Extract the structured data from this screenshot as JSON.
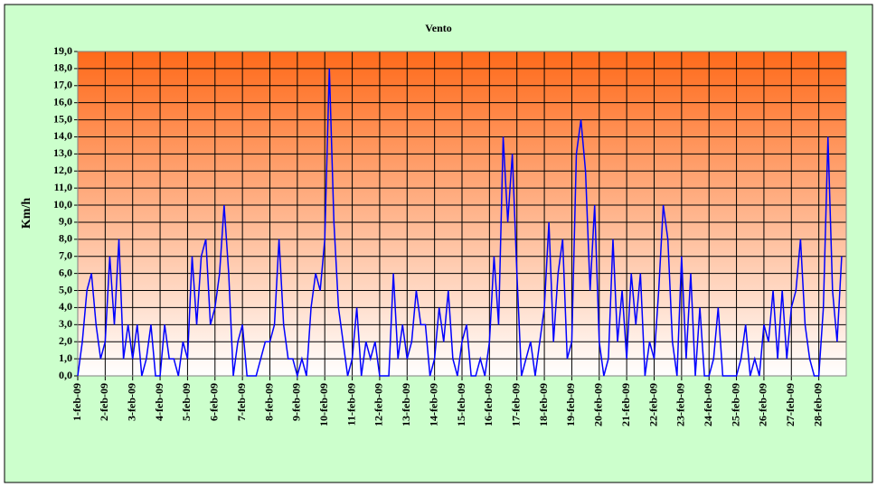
{
  "chart_data": {
    "type": "line",
    "title": "Vento",
    "y_label": "Km/h",
    "categories": [
      "1-feb-09",
      null,
      null,
      null,
      null,
      null,
      "2-feb-09",
      null,
      null,
      null,
      null,
      null,
      "3-feb-09",
      null,
      null,
      null,
      null,
      null,
      "4-feb-09",
      null,
      null,
      null,
      null,
      null,
      "5-feb-09",
      null,
      null,
      null,
      null,
      null,
      "6-feb-09",
      null,
      null,
      null,
      null,
      null,
      "7-feb-09",
      null,
      null,
      null,
      null,
      null,
      "8-feb-09",
      null,
      null,
      null,
      null,
      null,
      "9-feb-09",
      null,
      null,
      null,
      null,
      null,
      "10-feb-09",
      null,
      null,
      null,
      null,
      null,
      "11-feb-09",
      null,
      null,
      null,
      null,
      null,
      "12-feb-09",
      null,
      null,
      null,
      null,
      null,
      "13-feb-09",
      null,
      null,
      null,
      null,
      null,
      "14-feb-09",
      null,
      null,
      null,
      null,
      null,
      "15-feb-09",
      null,
      null,
      null,
      null,
      null,
      "16-feb-09",
      null,
      null,
      null,
      null,
      null,
      "17-feb-09",
      null,
      null,
      null,
      null,
      null,
      "18-feb-09",
      null,
      null,
      null,
      null,
      null,
      "19-feb-09",
      null,
      null,
      null,
      null,
      null,
      "20-feb-09",
      null,
      null,
      null,
      null,
      null,
      "21-feb-09",
      null,
      null,
      null,
      null,
      null,
      "22-feb-09",
      null,
      null,
      null,
      null,
      null,
      "23-feb-09",
      null,
      null,
      null,
      null,
      null,
      "24-feb-09",
      null,
      null,
      null,
      null,
      null,
      "25-feb-09",
      null,
      null,
      null,
      null,
      null,
      "26-feb-09",
      null,
      null,
      null,
      null,
      null,
      "27-feb-09",
      null,
      null,
      null,
      null,
      null,
      "28-feb-09",
      null,
      null,
      null,
      null,
      null
    ],
    "series": [
      {
        "name": "Vento",
        "color": "#0000ff",
        "values": [
          0,
          2,
          5,
          6,
          3,
          1,
          2,
          7,
          3,
          8,
          1,
          3,
          1,
          3,
          0,
          1,
          3,
          0,
          0,
          3,
          1,
          1,
          0,
          2,
          1,
          7,
          3,
          7,
          8,
          3,
          4,
          6,
          10,
          6,
          0,
          2,
          3,
          0,
          0,
          0,
          1,
          2,
          2,
          3,
          8,
          3,
          1,
          1,
          0,
          1,
          0,
          4,
          6,
          5,
          8,
          18,
          9,
          4,
          2,
          0,
          1,
          4,
          0,
          2,
          1,
          2,
          0,
          0,
          0,
          6,
          1,
          3,
          1,
          2,
          5,
          3,
          3,
          0,
          1,
          4,
          2,
          5,
          1,
          0,
          2,
          3,
          0,
          0,
          1,
          0,
          2,
          7,
          3,
          14,
          9,
          13,
          6,
          0,
          1,
          2,
          0,
          2,
          4,
          9,
          2,
          6,
          8,
          1,
          2,
          13,
          15,
          12,
          5,
          10,
          2,
          0,
          1,
          8,
          2,
          5,
          1,
          6,
          3,
          6,
          0,
          2,
          1,
          5,
          10,
          8,
          2,
          0,
          7,
          1,
          6,
          0,
          4,
          0,
          0,
          1,
          4,
          0,
          0,
          0,
          0,
          1,
          3,
          0,
          1,
          0,
          3,
          2,
          5,
          1,
          5,
          1,
          4,
          5,
          8,
          3,
          1,
          0,
          0,
          4,
          14,
          5,
          2,
          7
        ]
      }
    ],
    "ylim": [
      0,
      19
    ],
    "yticks": [
      {
        "value": 0,
        "label": "0,0"
      },
      {
        "value": 1,
        "label": "1,0"
      },
      {
        "value": 2,
        "label": "2,0"
      },
      {
        "value": 3,
        "label": "3,0"
      },
      {
        "value": 4,
        "label": "4,0"
      },
      {
        "value": 5,
        "label": "5,0"
      },
      {
        "value": 6,
        "label": "6,0"
      },
      {
        "value": 7,
        "label": "7,0"
      },
      {
        "value": 8,
        "label": "8,0"
      },
      {
        "value": 9,
        "label": "9,0"
      },
      {
        "value": 10,
        "label": "10,0"
      },
      {
        "value": 11,
        "label": "11,0"
      },
      {
        "value": 12,
        "label": "12,0"
      },
      {
        "value": 13,
        "label": "13,0"
      },
      {
        "value": 14,
        "label": "14,0"
      },
      {
        "value": 15,
        "label": "15,0"
      },
      {
        "value": 16,
        "label": "16,0"
      },
      {
        "value": 17,
        "label": "17,0"
      },
      {
        "value": 18,
        "label": "18,0"
      },
      {
        "value": 19,
        "label": "19,0"
      }
    ],
    "grid": true
  }
}
